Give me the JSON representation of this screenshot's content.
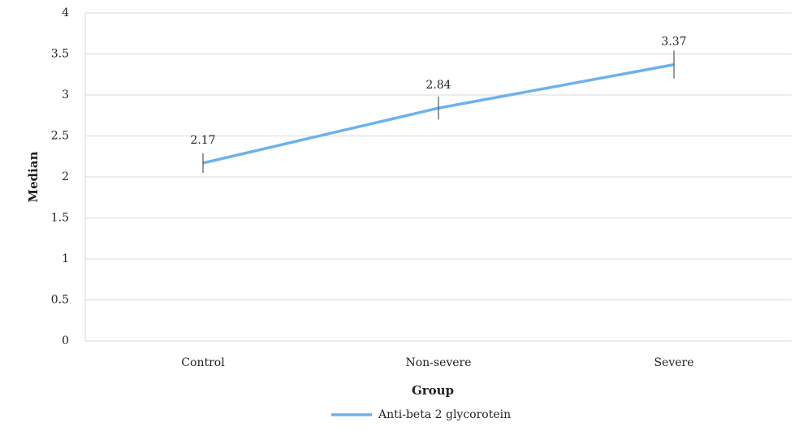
{
  "chart_data": {
    "type": "line",
    "x_label": "Group",
    "y_label": "Median",
    "categories": [
      "Control",
      "Non-severe",
      "Severe"
    ],
    "series": [
      {
        "name": "Anti-beta 2 glycorotein",
        "color": "#6cb2ec",
        "values": [
          2.17,
          2.84,
          3.37
        ],
        "errors": [
          0.12,
          0.14,
          0.17
        ]
      }
    ],
    "ylim": [
      0,
      4
    ],
    "yticks": [
      0,
      0.5,
      1,
      1.5,
      2,
      2.5,
      3,
      3.5,
      4
    ],
    "grid": true,
    "legend": "bottom",
    "data_labels": true
  }
}
